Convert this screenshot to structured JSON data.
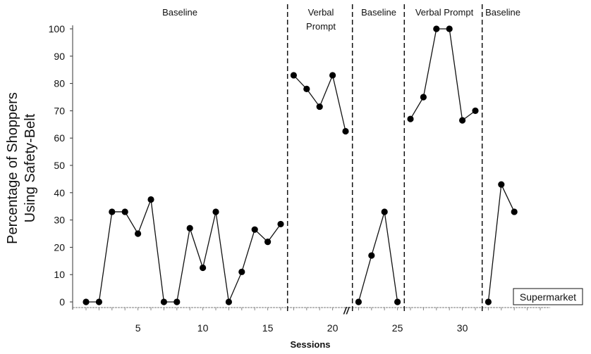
{
  "chart_data": {
    "type": "line",
    "title": "",
    "xlabel": "Sessions",
    "ylabel_lines": [
      "Percentage  of Shoppers",
      "Using Safety-Belt"
    ],
    "ylim": [
      0,
      100
    ],
    "yticks": [
      0,
      10,
      20,
      30,
      40,
      50,
      60,
      70,
      80,
      90,
      100
    ],
    "xticks": [
      5,
      10,
      15,
      20,
      25,
      30
    ],
    "xlim": [
      0,
      35
    ],
    "grid": false,
    "legend": {
      "label": "Supermarket",
      "placement": "bottom-right"
    },
    "phase_changes": [
      16.5,
      21.5,
      25.5,
      31.5
    ],
    "axis_break_mark": "//",
    "phases": [
      {
        "label_lines": [
          "Baseline"
        ],
        "x": [
          1,
          2,
          3,
          4,
          5,
          6,
          7,
          8,
          9,
          10,
          11,
          12,
          13,
          14,
          15,
          16
        ],
        "y": [
          0,
          0,
          33,
          33,
          25,
          37.5,
          0,
          0,
          27,
          12.5,
          33,
          0,
          11,
          26.5,
          22,
          28.5
        ]
      },
      {
        "label_lines": [
          "Verbal",
          "Prompt"
        ],
        "x": [
          17,
          18,
          19,
          20,
          21
        ],
        "y": [
          83,
          78,
          71.5,
          83,
          62.5
        ]
      },
      {
        "label_lines": [
          "Baseline"
        ],
        "x": [
          22,
          23,
          24,
          25
        ],
        "y": [
          0,
          17,
          33,
          0
        ]
      },
      {
        "label_lines": [
          "Verbal Prompt"
        ],
        "x": [
          26,
          27,
          28,
          29,
          30,
          31
        ],
        "y": [
          67,
          75,
          100,
          100,
          66.5,
          70
        ]
      },
      {
        "label_lines": [
          "Baseline"
        ],
        "x": [
          32,
          33,
          34
        ],
        "y": [
          0,
          43,
          33
        ]
      }
    ]
  }
}
